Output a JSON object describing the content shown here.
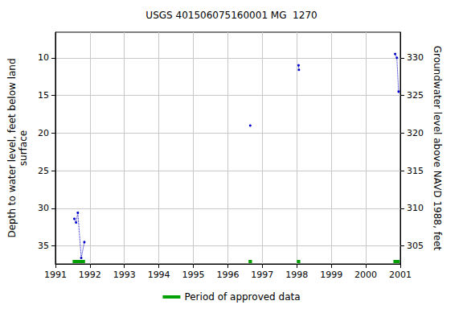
{
  "chart_data": {
    "type": "line",
    "title": "USGS 401506075160001 MG  1270",
    "y_label": "Depth to water level, feet below land\nsurface",
    "y2_label": "Groundwater level above NAVD 1988, feet",
    "x": [
      1991.55,
      1991.6,
      1991.65,
      1991.75,
      1991.84,
      1994,
      1996.65,
      1997.5,
      1998.05,
      1998.06,
      1999.5,
      2000.85,
      2000.9,
      2000.95
    ],
    "series": [
      {
        "color": "#0000cc",
        "marker": "circle",
        "line_style": "dotted",
        "values": [
          31.4,
          31.9,
          30.6,
          36.6,
          34.5,
          null,
          19.0,
          null,
          11.0,
          11.6,
          null,
          9.5,
          10.0,
          14.5
        ]
      },
      {
        "name": "Period of approved data",
        "type": "periods",
        "color": "#00a000",
        "periods": [
          [
            1991.5,
            1991.86
          ],
          [
            1996.6,
            1996.7
          ],
          [
            1998.0,
            1998.1
          ],
          [
            2000.8,
            2000.98
          ]
        ]
      }
    ],
    "xlim": [
      1991,
      2001
    ],
    "xticks": [
      1991,
      1992,
      1993,
      1994,
      1995,
      1996,
      1997,
      1998,
      1999,
      2000,
      2001
    ],
    "ylim": [
      6.6,
      37.4
    ],
    "yticks": [
      10,
      15,
      20,
      25,
      30,
      35
    ],
    "y2lim": [
      302.6,
      333.4
    ],
    "y2ticks": [
      305,
      310,
      315,
      320,
      325,
      330
    ],
    "grid": true
  }
}
